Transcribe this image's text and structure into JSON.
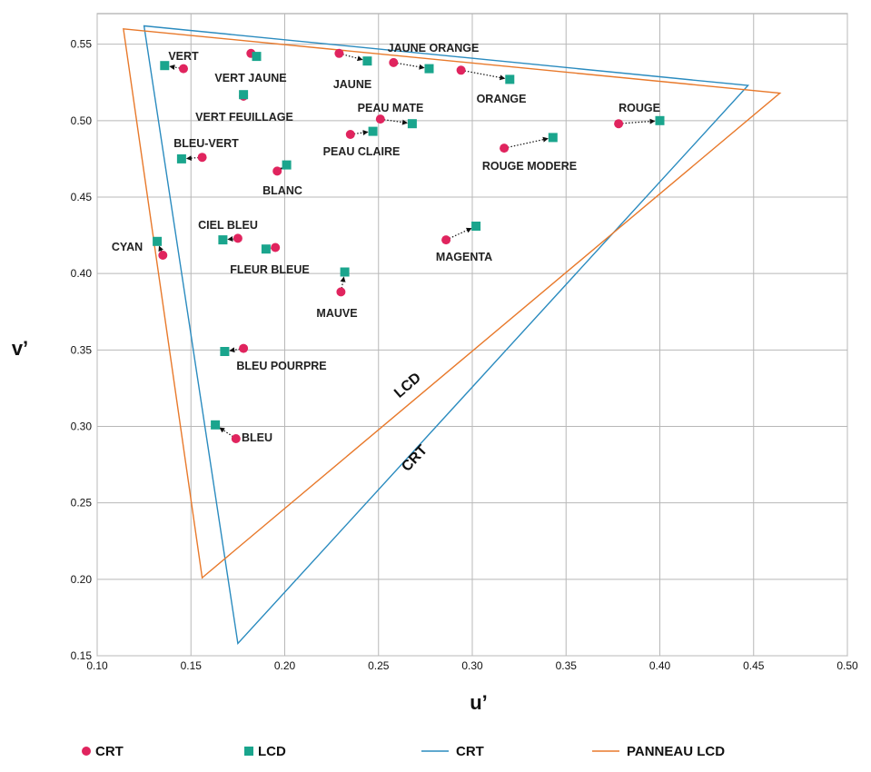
{
  "chart_data": {
    "type": "scatter",
    "title": "",
    "xlabel": "u’",
    "ylabel": "v’",
    "xlim": [
      0.1,
      0.5
    ],
    "ylim": [
      0.15,
      0.57
    ],
    "xticks": [
      "0.10",
      "0.15",
      "0.20",
      "0.25",
      "0.30",
      "0.35",
      "0.40",
      "0.45",
      "0.50"
    ],
    "yticks": [
      "0.15",
      "0.20",
      "0.25",
      "0.30",
      "0.35",
      "0.40",
      "0.45",
      "0.50",
      "0.55"
    ],
    "grid": true,
    "legend_position": "bottom",
    "colors": {
      "crt": "#e0245e",
      "lcd": "#1aa58d",
      "crt_gamut": "#2a8bbf",
      "lcd_gamut": "#e8792b"
    },
    "series": [
      {
        "name": "CRT",
        "marker": "circle"
      },
      {
        "name": "LCD",
        "marker": "square"
      }
    ],
    "gamuts": [
      {
        "name": "CRT",
        "label": "CRT",
        "vertices": [
          [
            0.125,
            0.562
          ],
          [
            0.447,
            0.523
          ],
          [
            0.175,
            0.158
          ]
        ]
      },
      {
        "name": "PANNEAU LCD",
        "label": "LCD",
        "vertices": [
          [
            0.114,
            0.56
          ],
          [
            0.464,
            0.518
          ],
          [
            0.156,
            0.201
          ]
        ]
      }
    ],
    "points": [
      {
        "label": "VERT",
        "crt": [
          0.146,
          0.534
        ],
        "lcd": [
          0.136,
          0.536
        ]
      },
      {
        "label": "VERT JAUNE",
        "crt": [
          0.182,
          0.544
        ],
        "lcd": [
          0.185,
          0.542
        ]
      },
      {
        "label": "VERT FEUILLAGE",
        "crt": [
          0.178,
          0.516
        ],
        "lcd": [
          0.178,
          0.517
        ]
      },
      {
        "label": "JAUNE",
        "crt": [
          0.229,
          0.544
        ],
        "lcd": [
          0.244,
          0.539
        ]
      },
      {
        "label": "JAUNE ORANGE",
        "crt": [
          0.258,
          0.538
        ],
        "lcd": [
          0.277,
          0.534
        ]
      },
      {
        "label": "ORANGE",
        "crt": [
          0.294,
          0.533
        ],
        "lcd": [
          0.32,
          0.527
        ]
      },
      {
        "label": "PEAU MATE",
        "crt": [
          0.251,
          0.501
        ],
        "lcd": [
          0.268,
          0.498
        ]
      },
      {
        "label": "PEAU CLAIRE",
        "crt": [
          0.235,
          0.491
        ],
        "lcd": [
          0.247,
          0.493
        ]
      },
      {
        "label": "ROUGE",
        "crt": [
          0.378,
          0.498
        ],
        "lcd": [
          0.4,
          0.5
        ]
      },
      {
        "label": "ROUGE MODERE",
        "crt": [
          0.317,
          0.482
        ],
        "lcd": [
          0.343,
          0.489
        ]
      },
      {
        "label": "BLEU-VERT",
        "crt": [
          0.156,
          0.476
        ],
        "lcd": [
          0.145,
          0.475
        ]
      },
      {
        "label": "BLANC",
        "crt": [
          0.196,
          0.467
        ],
        "lcd": [
          0.201,
          0.471
        ]
      },
      {
        "label": "CIEL BLEU",
        "crt": [
          0.175,
          0.423
        ],
        "lcd": [
          0.167,
          0.422
        ]
      },
      {
        "label": "CYAN",
        "crt": [
          0.135,
          0.412
        ],
        "lcd": [
          0.132,
          0.421
        ]
      },
      {
        "label": "FLEUR BLEUE",
        "crt": [
          0.195,
          0.417
        ],
        "lcd": [
          0.19,
          0.416
        ]
      },
      {
        "label": "MAGENTA",
        "crt": [
          0.286,
          0.422
        ],
        "lcd": [
          0.302,
          0.431
        ]
      },
      {
        "label": "MAUVE",
        "crt": [
          0.23,
          0.388
        ],
        "lcd": [
          0.232,
          0.401
        ]
      },
      {
        "label": "BLEU POURPRE",
        "crt": [
          0.178,
          0.351
        ],
        "lcd": [
          0.168,
          0.349
        ]
      },
      {
        "label": "BLEU",
        "crt": [
          0.174,
          0.292
        ],
        "lcd": [
          0.163,
          0.301
        ]
      }
    ],
    "legend": [
      {
        "key": "crt-point",
        "label": "CRT",
        "kind": "circle"
      },
      {
        "key": "lcd-point",
        "label": "LCD",
        "kind": "square"
      },
      {
        "key": "crt-line",
        "label": "CRT",
        "kind": "line"
      },
      {
        "key": "lcd-line",
        "label": "PANNEAU LCD",
        "kind": "line"
      }
    ]
  }
}
